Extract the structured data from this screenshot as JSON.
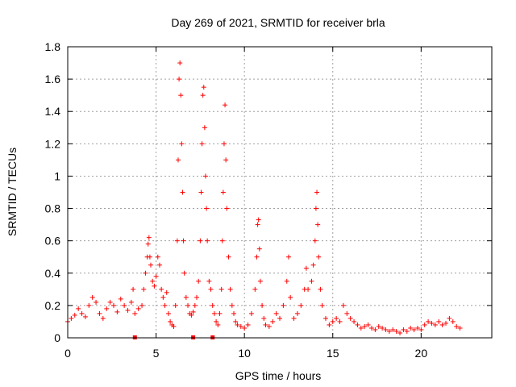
{
  "chart_data": {
    "type": "scatter",
    "title": "Day 269 of 2021, SRMTID for receiver brla",
    "xlabel": "GPS time / hours",
    "ylabel": "SRMTID / TECUs",
    "xlim": [
      0,
      24
    ],
    "ylim": [
      0,
      1.8
    ],
    "xticks": [
      0,
      5,
      10,
      15,
      20
    ],
    "xtick_labels": [
      "0",
      "5",
      "10",
      "15",
      "20"
    ],
    "yticks": [
      0,
      0.2,
      0.4,
      0.6,
      0.8,
      1,
      1.2,
      1.4,
      1.6,
      1.8
    ],
    "ytick_labels": [
      "0",
      "0.2",
      "0.4",
      "0.6",
      "0.8",
      "1",
      "1.2",
      "1.4",
      "1.6",
      "1.8"
    ],
    "grid": true,
    "marker": "+",
    "series_color": "#ff0000",
    "gap_markers_x": [
      3.8,
      7.1,
      8.2
    ],
    "series": [
      {
        "name": "SRMTID",
        "x": [
          0.0,
          0.2,
          0.4,
          0.6,
          0.8,
          1.0,
          1.2,
          1.4,
          1.6,
          1.8,
          2.0,
          2.2,
          2.4,
          2.6,
          2.8,
          3.0,
          3.2,
          3.4,
          3.6,
          3.7,
          3.8,
          4.0,
          4.2,
          4.3,
          4.4,
          4.5,
          4.55,
          4.6,
          4.65,
          4.7,
          4.8,
          4.9,
          5.0,
          5.1,
          5.2,
          5.3,
          5.4,
          5.5,
          5.6,
          5.7,
          5.8,
          5.9,
          6.0,
          6.1,
          6.2,
          6.25,
          6.3,
          6.35,
          6.4,
          6.45,
          6.5,
          6.55,
          6.6,
          6.7,
          6.8,
          6.9,
          7.0,
          7.1,
          7.2,
          7.3,
          7.4,
          7.5,
          7.55,
          7.6,
          7.65,
          7.7,
          7.75,
          7.8,
          7.85,
          7.9,
          8.0,
          8.1,
          8.2,
          8.3,
          8.4,
          8.5,
          8.6,
          8.7,
          8.75,
          8.8,
          8.85,
          8.9,
          8.95,
          9.0,
          9.1,
          9.2,
          9.3,
          9.4,
          9.5,
          9.6,
          9.8,
          10.0,
          10.2,
          10.4,
          10.6,
          10.7,
          10.75,
          10.8,
          10.85,
          10.9,
          11.0,
          11.1,
          11.2,
          11.4,
          11.6,
          11.8,
          12.0,
          12.2,
          12.4,
          12.5,
          12.6,
          12.8,
          13.0,
          13.2,
          13.4,
          13.5,
          13.6,
          13.8,
          13.9,
          14.0,
          14.05,
          14.1,
          14.15,
          14.2,
          14.3,
          14.4,
          14.6,
          14.8,
          15.0,
          15.2,
          15.4,
          15.6,
          15.8,
          16.0,
          16.2,
          16.4,
          16.6,
          16.8,
          17.0,
          17.2,
          17.4,
          17.6,
          17.8,
          18.0,
          18.2,
          18.4,
          18.6,
          18.8,
          19.0,
          19.2,
          19.4,
          19.6,
          19.8,
          20.0,
          20.2,
          20.4,
          20.6,
          20.8,
          21.0,
          21.2,
          21.4,
          21.6,
          21.8,
          22.0,
          22.2
        ],
        "y": [
          0.1,
          0.12,
          0.14,
          0.18,
          0.15,
          0.13,
          0.2,
          0.25,
          0.22,
          0.15,
          0.12,
          0.18,
          0.22,
          0.2,
          0.16,
          0.24,
          0.2,
          0.17,
          0.22,
          0.3,
          0.15,
          0.18,
          0.2,
          0.3,
          0.4,
          0.5,
          0.58,
          0.62,
          0.5,
          0.45,
          0.35,
          0.32,
          0.38,
          0.5,
          0.45,
          0.3,
          0.25,
          0.2,
          0.28,
          0.15,
          0.1,
          0.08,
          0.07,
          0.2,
          0.6,
          1.1,
          1.6,
          1.7,
          1.5,
          1.2,
          0.9,
          0.6,
          0.4,
          0.25,
          0.2,
          0.15,
          0.14,
          0.16,
          0.2,
          0.25,
          0.35,
          0.6,
          0.9,
          1.2,
          1.5,
          1.55,
          1.3,
          1.0,
          0.8,
          0.6,
          0.35,
          0.3,
          0.2,
          0.15,
          0.1,
          0.08,
          0.15,
          0.3,
          0.6,
          0.9,
          1.2,
          1.44,
          1.1,
          0.8,
          0.5,
          0.3,
          0.2,
          0.15,
          0.1,
          0.08,
          0.07,
          0.06,
          0.08,
          0.15,
          0.3,
          0.5,
          0.7,
          0.73,
          0.55,
          0.35,
          0.2,
          0.12,
          0.08,
          0.07,
          0.1,
          0.15,
          0.12,
          0.2,
          0.35,
          0.5,
          0.25,
          0.12,
          0.15,
          0.2,
          0.3,
          0.43,
          0.3,
          0.35,
          0.45,
          0.6,
          0.8,
          0.9,
          0.7,
          0.5,
          0.3,
          0.2,
          0.12,
          0.08,
          0.1,
          0.12,
          0.1,
          0.2,
          0.15,
          0.12,
          0.1,
          0.08,
          0.06,
          0.07,
          0.08,
          0.06,
          0.05,
          0.07,
          0.06,
          0.05,
          0.04,
          0.05,
          0.04,
          0.03,
          0.05,
          0.04,
          0.06,
          0.05,
          0.06,
          0.05,
          0.08,
          0.1,
          0.09,
          0.08,
          0.1,
          0.08,
          0.09,
          0.12,
          0.1,
          0.07,
          0.06
        ]
      }
    ]
  }
}
